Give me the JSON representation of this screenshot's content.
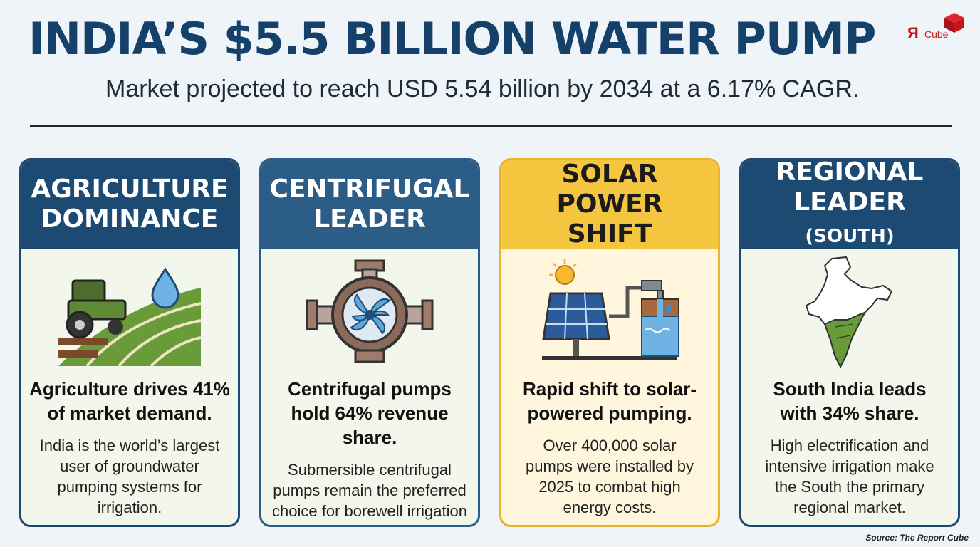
{
  "header": {
    "title": "INDIA’S $5.5 BILLION WATER PUMP",
    "subtitle": "Market projected to reach USD 5.54 billion by 2034 at a 6.17% CAGR."
  },
  "logo": {
    "mark": "Я",
    "text": "Cube"
  },
  "cards": [
    {
      "heading": "AGRICULTURE\nDOMINANCE",
      "icon": "tractor-field-icon",
      "lead": "Agriculture drives 41%\nof market demand.",
      "body": "India is the world’s largest\nuser of groundwater\npumping systems for\nirrigation."
    },
    {
      "heading": "CENTRIFUGAL\nLEADER",
      "icon": "centrifugal-pump-icon",
      "lead": "Centrifugal pumps\nhold 64% revenue share.",
      "body": "Submersible centrifugal\npumps remain the preferred\nchoice for borewell irrigation\nand municipal supply."
    },
    {
      "heading": "SOLAR POWER\nSHIFT",
      "icon": "solar-pump-icon",
      "lead": "Rapid shift to solar-\npowered pumping.",
      "body": "Over 400,000 solar\npumps were installed by\n2025 to combat high\nenergy costs."
    },
    {
      "heading_main": "REGIONAL\nLEADER",
      "heading_suffix": "(SOUTH)",
      "icon": "india-map-icon",
      "lead": "South India leads\nwith 34% share.",
      "body": "High electrification and\nintensive irrigation make\nthe South the primary\nregional market."
    }
  ],
  "source": "Source: The Report Cube",
  "colors": {
    "navy": "#1c4a73",
    "blue": "#2c5d87",
    "solar": "#f4c53f",
    "accent": "#c3161c"
  }
}
